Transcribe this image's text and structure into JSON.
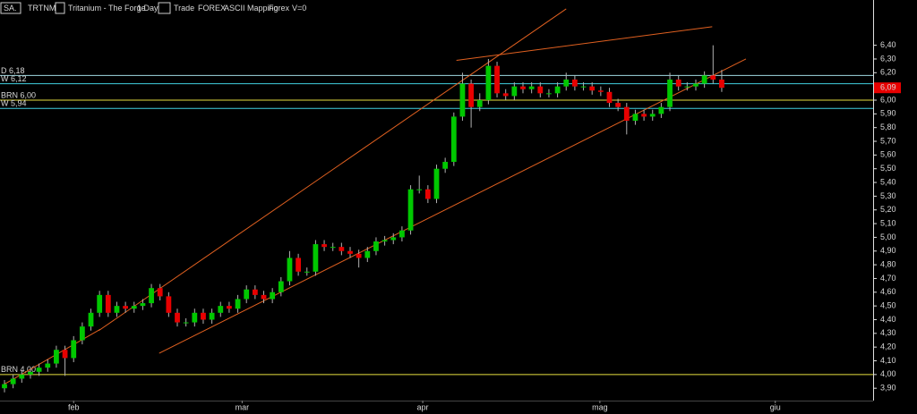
{
  "chart_data": {
    "type": "candlestick",
    "toolbar": [
      "SA.",
      "TRTNM",
      "Tritanium - The Forge",
      "1 Day",
      "Trade",
      "FOREX",
      "ASCII Mapping",
      "Forex",
      "V=0"
    ],
    "x": [
      0,
      1,
      2,
      3,
      4,
      5,
      6,
      7,
      8,
      9,
      10,
      11,
      12,
      13,
      14,
      15,
      16,
      17,
      18,
      19,
      20,
      21,
      22,
      23,
      24,
      25,
      26,
      27,
      28,
      29,
      30,
      31,
      32,
      33,
      34,
      35,
      36,
      37,
      38,
      39,
      40,
      41,
      42,
      43,
      44,
      45,
      46,
      47,
      48,
      49,
      50,
      51,
      52,
      53,
      54,
      55,
      56,
      57,
      58,
      59,
      60,
      61,
      62,
      63,
      64,
      65,
      66,
      67,
      68,
      69,
      70,
      71,
      72,
      73,
      74,
      75,
      76,
      77,
      78,
      79,
      80,
      81,
      82,
      83
    ],
    "open": [
      3.9,
      3.93,
      3.97,
      4.0,
      4.02,
      4.05,
      4.08,
      4.18,
      4.12,
      4.25,
      4.35,
      4.45,
      4.58,
      4.45,
      4.5,
      4.48,
      4.5,
      4.52,
      4.63,
      4.57,
      4.45,
      4.38,
      4.38,
      4.45,
      4.4,
      4.45,
      4.5,
      4.48,
      4.55,
      4.62,
      4.58,
      4.55,
      4.6,
      4.68,
      4.85,
      4.75,
      4.75,
      4.95,
      4.93,
      4.93,
      4.9,
      4.88,
      4.85,
      4.9,
      4.97,
      4.98,
      5.0,
      5.05,
      5.35,
      5.35,
      5.28,
      5.5,
      5.55,
      5.88,
      6.12,
      5.95,
      6.0,
      6.25,
      6.05,
      6.03,
      6.1,
      6.08,
      6.1,
      6.05,
      6.05,
      6.1,
      6.15,
      6.1,
      6.1,
      6.07,
      6.06,
      5.98,
      5.95,
      5.85,
      5.9,
      5.88,
      5.9,
      5.95,
      6.15,
      6.1,
      6.1,
      6.12,
      6.18,
      6.15
    ],
    "high": [
      3.96,
      4.0,
      4.03,
      4.05,
      4.08,
      4.11,
      4.21,
      4.21,
      4.28,
      4.38,
      4.48,
      4.61,
      4.61,
      4.53,
      4.53,
      4.53,
      4.55,
      4.66,
      4.66,
      4.6,
      4.48,
      4.41,
      4.48,
      4.48,
      4.48,
      4.53,
      4.53,
      4.58,
      4.65,
      4.65,
      4.61,
      4.63,
      4.71,
      4.9,
      4.88,
      4.78,
      4.98,
      4.98,
      4.96,
      4.96,
      4.93,
      4.91,
      4.93,
      5.0,
      5.01,
      5.03,
      5.08,
      5.38,
      5.45,
      5.38,
      5.53,
      5.58,
      5.91,
      6.2,
      6.15,
      6.05,
      6.3,
      6.28,
      6.08,
      6.13,
      6.13,
      6.13,
      6.13,
      6.08,
      6.13,
      6.2,
      6.18,
      6.13,
      6.13,
      6.1,
      6.09,
      6.01,
      5.98,
      5.93,
      5.93,
      5.93,
      5.98,
      6.2,
      6.18,
      6.13,
      6.15,
      6.21,
      6.4,
      6.22
    ],
    "low": [
      3.87,
      3.9,
      3.94,
      3.97,
      3.99,
      4.02,
      4.05,
      3.99,
      4.09,
      4.22,
      4.32,
      4.42,
      4.42,
      4.42,
      4.45,
      4.45,
      4.47,
      4.49,
      4.54,
      4.42,
      4.35,
      4.35,
      4.35,
      4.37,
      4.37,
      4.42,
      4.45,
      4.45,
      4.52,
      4.55,
      4.52,
      4.52,
      4.57,
      4.65,
      4.72,
      4.72,
      4.72,
      4.9,
      4.9,
      4.87,
      4.85,
      4.78,
      4.82,
      4.87,
      4.94,
      4.95,
      4.97,
      5.02,
      5.32,
      5.25,
      5.25,
      5.47,
      5.52,
      5.85,
      5.8,
      5.92,
      5.97,
      6.02,
      6.0,
      6.0,
      6.05,
      6.05,
      6.02,
      6.02,
      6.02,
      6.07,
      6.07,
      6.07,
      6.04,
      6.03,
      5.95,
      5.92,
      5.75,
      5.82,
      5.85,
      5.85,
      5.87,
      5.92,
      6.07,
      6.07,
      6.07,
      6.09,
      6.12,
      6.06
    ],
    "close": [
      3.93,
      3.97,
      4.0,
      4.02,
      4.05,
      4.08,
      4.18,
      4.12,
      4.25,
      4.35,
      4.45,
      4.58,
      4.45,
      4.5,
      4.48,
      4.5,
      4.52,
      4.63,
      4.57,
      4.45,
      4.38,
      4.38,
      4.45,
      4.4,
      4.45,
      4.5,
      4.48,
      4.55,
      4.62,
      4.58,
      4.55,
      4.6,
      4.68,
      4.85,
      4.75,
      4.75,
      4.95,
      4.93,
      4.93,
      4.9,
      4.88,
      4.85,
      4.9,
      4.97,
      4.98,
      5.0,
      5.05,
      5.35,
      5.35,
      5.28,
      5.5,
      5.55,
      5.88,
      6.12,
      5.95,
      6.0,
      6.25,
      6.05,
      6.03,
      6.1,
      6.08,
      6.1,
      6.05,
      6.05,
      6.1,
      6.15,
      6.1,
      6.1,
      6.07,
      6.06,
      5.98,
      5.95,
      5.85,
      5.9,
      5.88,
      5.9,
      5.95,
      6.15,
      6.1,
      6.1,
      6.12,
      6.18,
      6.15,
      6.09
    ],
    "up_color": "#00c800",
    "down_color": "#e80000",
    "xlim": [
      -0.52,
      100.52
    ],
    "xticks": [
      {
        "value": 8.0,
        "label": "feb"
      },
      {
        "value": 27.5,
        "label": "mar"
      },
      {
        "value": 48.4,
        "label": "apr"
      },
      {
        "value": 68.9,
        "label": "mag"
      },
      {
        "value": 89.2,
        "label": "giu"
      }
    ],
    "ylim": [
      3.81,
      6.73
    ],
    "yticks": [
      {
        "value": 3.9,
        "label": "3,90"
      },
      {
        "value": 4.0,
        "label": "4,00"
      },
      {
        "value": 4.1,
        "label": "4,10"
      },
      {
        "value": 4.2,
        "label": "4,20"
      },
      {
        "value": 4.3,
        "label": "4,30"
      },
      {
        "value": 4.4,
        "label": "4,40"
      },
      {
        "value": 4.5,
        "label": "4,50"
      },
      {
        "value": 4.6,
        "label": "4,60"
      },
      {
        "value": 4.7,
        "label": "4,70"
      },
      {
        "value": 4.8,
        "label": "4,80"
      },
      {
        "value": 4.9,
        "label": "4,90"
      },
      {
        "value": 5.0,
        "label": "5,00"
      },
      {
        "value": 5.1,
        "label": "5,10"
      },
      {
        "value": 5.2,
        "label": "5,20"
      },
      {
        "value": 5.3,
        "label": "5,30"
      },
      {
        "value": 5.4,
        "label": "5,40"
      },
      {
        "value": 5.5,
        "label": "5,50"
      },
      {
        "value": 5.6,
        "label": "5,60"
      },
      {
        "value": 5.7,
        "label": "5,70"
      },
      {
        "value": 5.8,
        "label": "5,80"
      },
      {
        "value": 5.9,
        "label": "5,90"
      },
      {
        "value": 6.0,
        "label": "6,00"
      },
      {
        "value": 6.1,
        "label": "6,10"
      },
      {
        "value": 6.2,
        "label": "6,20"
      },
      {
        "value": 6.3,
        "label": "6,30"
      },
      {
        "value": 6.4,
        "label": "6,40"
      }
    ],
    "hlines": [
      {
        "label": "D 6,18",
        "value": 6.18,
        "color": "#9fd8e0"
      },
      {
        "label": "W 6,12",
        "value": 6.12,
        "color": "#40d0e0"
      },
      {
        "label": "BRN 6,00",
        "value": 6.0,
        "color": "#e8e040"
      },
      {
        "label": "W 5,94",
        "value": 5.94,
        "color": "#40d0e0"
      },
      {
        "label": "BRN 4,00",
        "value": 4.0,
        "color": "#e8e040"
      }
    ],
    "trend_color": "#e06020",
    "trendlines": [
      {
        "x": [
          0.0,
          11.1
        ],
        "y": [
          3.93,
          4.33
        ]
      },
      {
        "x": [
          17.9,
          85.8
        ],
        "y": [
          4.155,
          6.3
        ]
      },
      {
        "x": [
          10.9,
          65.0
        ],
        "y": [
          4.32,
          6.665
        ]
      },
      {
        "x": [
          52.3,
          81.9
        ],
        "y": [
          6.29,
          6.535
        ]
      }
    ],
    "last_price": {
      "value": 6.09,
      "label": "6,09"
    }
  }
}
